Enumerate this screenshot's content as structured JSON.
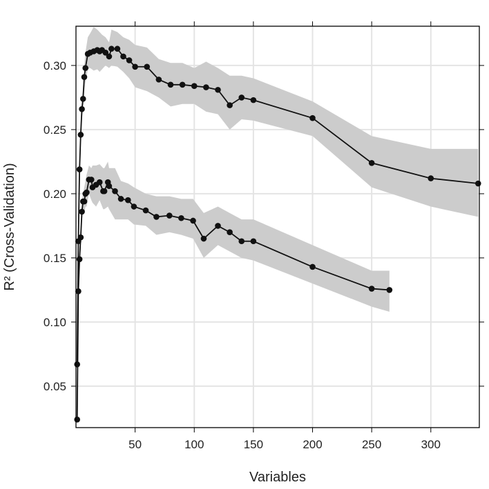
{
  "chart_data": {
    "type": "line",
    "title": "",
    "xlabel": "Variables",
    "ylabel": "R² (Cross-Validation)",
    "xlim": [
      0,
      341
    ],
    "ylim": [
      0.0177,
      0.3306
    ],
    "xticks": [
      50,
      100,
      150,
      200,
      250,
      300
    ],
    "yticks": [
      0.05,
      0.1,
      0.15,
      0.2,
      0.25,
      0.3
    ],
    "ytick_labels": [
      "0.05",
      "0.10",
      "0.15",
      "0.20",
      "0.25",
      "0.30"
    ],
    "grid": true,
    "colors": {
      "line": "#111111",
      "band": "#cccccc",
      "grid": "#e4e4e4"
    },
    "series": [
      {
        "x": [
          1,
          2,
          3,
          4,
          5,
          6,
          7,
          8,
          10,
          12,
          15,
          18,
          20,
          22,
          25,
          28,
          30,
          35,
          40,
          45,
          50,
          60,
          70,
          80,
          90,
          100,
          110,
          120,
          130,
          140,
          150,
          200,
          250,
          300,
          340
        ],
        "y": [
          0.067,
          0.163,
          0.219,
          0.246,
          0.266,
          0.274,
          0.291,
          0.298,
          0.309,
          0.31,
          0.311,
          0.312,
          0.311,
          0.312,
          0.31,
          0.307,
          0.313,
          0.313,
          0.307,
          0.304,
          0.299,
          0.299,
          0.289,
          0.285,
          0.285,
          0.284,
          0.283,
          0.281,
          0.269,
          0.275,
          0.273,
          0.259,
          0.224,
          0.212,
          0.208
        ],
        "hi": [
          0.07,
          0.17,
          0.225,
          0.255,
          0.275,
          0.283,
          0.3,
          0.31,
          0.322,
          0.325,
          0.33,
          0.328,
          0.326,
          0.324,
          0.322,
          0.318,
          0.328,
          0.326,
          0.322,
          0.32,
          0.316,
          0.314,
          0.305,
          0.302,
          0.302,
          0.298,
          0.303,
          0.298,
          0.292,
          0.292,
          0.29,
          0.272,
          0.245,
          0.235,
          0.235
        ],
        "lo": [
          0.06,
          0.155,
          0.21,
          0.24,
          0.258,
          0.265,
          0.28,
          0.287,
          0.297,
          0.298,
          0.296,
          0.297,
          0.295,
          0.297,
          0.3,
          0.298,
          0.3,
          0.299,
          0.295,
          0.29,
          0.283,
          0.28,
          0.275,
          0.268,
          0.27,
          0.27,
          0.264,
          0.262,
          0.25,
          0.258,
          0.257,
          0.245,
          0.205,
          0.19,
          0.182
        ]
      },
      {
        "x": [
          1,
          2,
          3,
          4,
          5,
          6,
          7,
          8,
          9,
          11,
          13,
          14,
          17,
          20,
          23,
          24,
          27,
          28,
          33,
          38,
          44,
          49,
          59,
          68,
          79,
          89,
          99,
          108,
          120,
          130,
          140,
          150,
          200,
          250,
          265
        ],
        "y": [
          0.024,
          0.124,
          0.149,
          0.166,
          0.186,
          0.194,
          0.194,
          0.2,
          0.201,
          0.211,
          0.211,
          0.205,
          0.207,
          0.209,
          0.202,
          0.202,
          0.209,
          0.206,
          0.202,
          0.196,
          0.195,
          0.19,
          0.187,
          0.182,
          0.183,
          0.181,
          0.179,
          0.165,
          0.175,
          0.17,
          0.163,
          0.163,
          0.143,
          0.126,
          0.125
        ],
        "hi": [
          0.03,
          0.13,
          0.155,
          0.172,
          0.195,
          0.2,
          0.205,
          0.21,
          0.215,
          0.222,
          0.22,
          0.222,
          0.222,
          0.223,
          0.22,
          0.22,
          0.225,
          0.22,
          0.22,
          0.21,
          0.208,
          0.205,
          0.2,
          0.198,
          0.198,
          0.196,
          0.196,
          0.185,
          0.19,
          0.185,
          0.18,
          0.18,
          0.16,
          0.14,
          0.14
        ],
        "lo": [
          0.02,
          0.118,
          0.142,
          0.158,
          0.178,
          0.186,
          0.185,
          0.19,
          0.19,
          0.2,
          0.195,
          0.193,
          0.19,
          0.195,
          0.188,
          0.188,
          0.19,
          0.188,
          0.18,
          0.18,
          0.18,
          0.176,
          0.175,
          0.168,
          0.17,
          0.168,
          0.165,
          0.15,
          0.16,
          0.155,
          0.15,
          0.148,
          0.13,
          0.112,
          0.108
        ]
      }
    ]
  }
}
